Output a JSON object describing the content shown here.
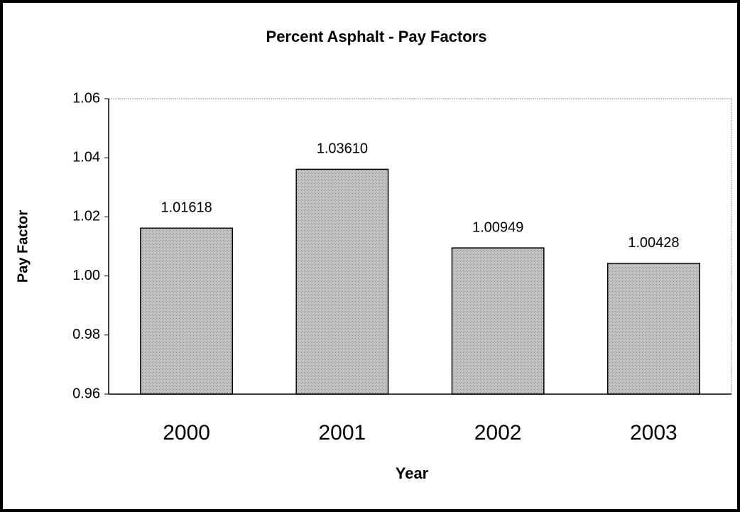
{
  "chart_data": {
    "type": "bar",
    "title": "Percent Asphalt - Pay Factors",
    "xlabel": "Year",
    "ylabel": "Pay Factor",
    "categories": [
      "2000",
      "2001",
      "2002",
      "2003"
    ],
    "values": [
      1.01618,
      1.0361,
      1.00949,
      1.00428
    ],
    "value_labels": [
      "1.01618",
      "1.03610",
      "1.00949",
      "1.00428"
    ],
    "color": "#c4c4c4",
    "ylim": [
      0.96,
      1.06
    ],
    "yticks": [
      0.96,
      0.98,
      {
        "value": 1,
        "label": "1.00"
      },
      1.02,
      1.04,
      1.06
    ]
  }
}
